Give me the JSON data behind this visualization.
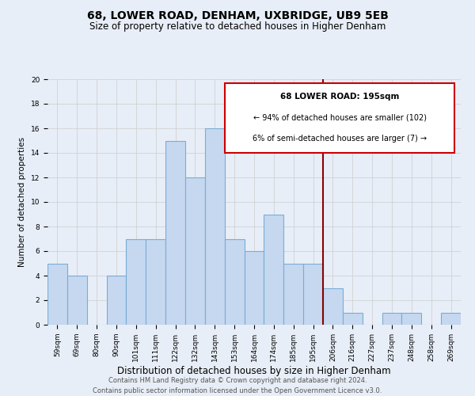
{
  "title": "68, LOWER ROAD, DENHAM, UXBRIDGE, UB9 5EB",
  "subtitle": "Size of property relative to detached houses in Higher Denham",
  "xlabel": "Distribution of detached houses by size in Higher Denham",
  "ylabel": "Number of detached properties",
  "footer_line1": "Contains HM Land Registry data © Crown copyright and database right 2024.",
  "footer_line2": "Contains public sector information licensed under the Open Government Licence v3.0.",
  "bin_labels": [
    "59sqm",
    "69sqm",
    "80sqm",
    "90sqm",
    "101sqm",
    "111sqm",
    "122sqm",
    "132sqm",
    "143sqm",
    "153sqm",
    "164sqm",
    "174sqm",
    "185sqm",
    "195sqm",
    "206sqm",
    "216sqm",
    "227sqm",
    "237sqm",
    "248sqm",
    "258sqm",
    "269sqm"
  ],
  "bar_heights": [
    5,
    4,
    0,
    4,
    7,
    7,
    15,
    12,
    16,
    7,
    6,
    9,
    5,
    5,
    3,
    1,
    0,
    1,
    1,
    0,
    1
  ],
  "bar_color": "#c5d8f0",
  "bar_edge_color": "#7aadd4",
  "bar_linewidth": 0.8,
  "red_line_index": 13,
  "red_line_color": "#8b0000",
  "annotation_title": "68 LOWER ROAD: 195sqm",
  "annotation_line1": "← 94% of detached houses are smaller (102)",
  "annotation_line2": "6% of semi-detached houses are larger (7) →",
  "annotation_box_color": "#ffffff",
  "annotation_border_color": "#cc0000",
  "ylim": [
    0,
    20
  ],
  "yticks": [
    0,
    2,
    4,
    6,
    8,
    10,
    12,
    14,
    16,
    18,
    20
  ],
  "grid_color": "#cccccc",
  "background_color": "#e8eef7",
  "title_fontsize": 10,
  "subtitle_fontsize": 8.5,
  "xlabel_fontsize": 8.5,
  "ylabel_fontsize": 7.5,
  "tick_fontsize": 6.5,
  "ann_title_fontsize": 7.5,
  "ann_text_fontsize": 7.0,
  "footer_fontsize": 6.0
}
